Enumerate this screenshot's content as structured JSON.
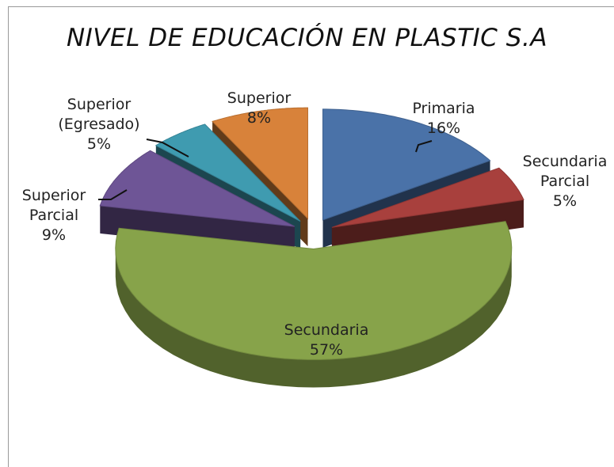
{
  "chart_data": {
    "type": "pie",
    "title": "NIVEL DE EDUCACIÓN EN PLASTIC S.A",
    "categories": [
      "Primaria",
      "Secundaria Parcial",
      "Secundaria",
      "Superior Parcial",
      "Superior (Egresado)",
      "Superior"
    ],
    "values": [
      16,
      5,
      57,
      9,
      5,
      8
    ],
    "value_labels": [
      "16%",
      "5%",
      "57%",
      "9%",
      "5%",
      "8%"
    ],
    "colors": [
      "#4a72a8",
      "#a8403d",
      "#87a34a",
      "#6e5596",
      "#3f9bb0",
      "#d8823a"
    ],
    "exploded": true,
    "three_d": true
  }
}
